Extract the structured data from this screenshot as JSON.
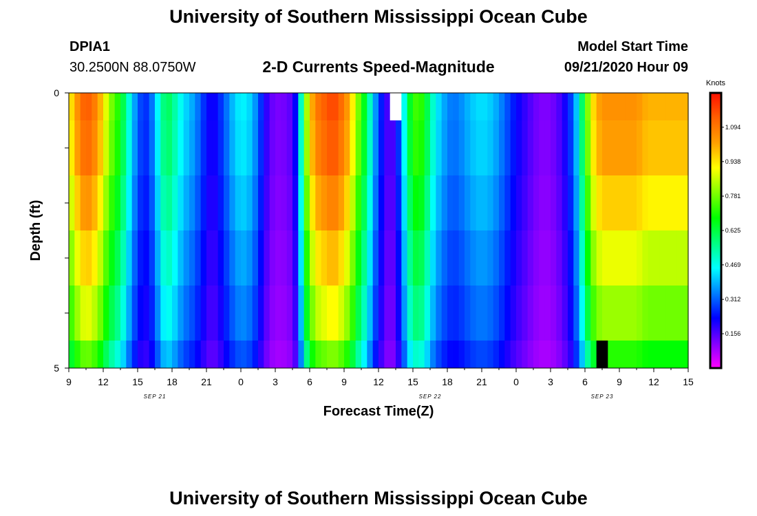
{
  "page": {
    "title_top": "University of Southern Mississippi Ocean Cube",
    "title_bottom": "University of Southern Mississippi Ocean Cube",
    "station_id": "DPIA1",
    "station_coords": "30.2500N 88.0750W",
    "model_start_label": "Model Start Time",
    "model_start_value": "09/21/2020 Hour 09"
  },
  "chart_data": {
    "type": "heatmap",
    "title": "2-D Currents Speed-Magnitude",
    "xlabel": "Forecast Time(Z)",
    "ylabel": "Depth (ft)",
    "colorbar_label": "Knots",
    "x_tick_labels": [
      "9",
      "12",
      "15",
      "18",
      "21",
      "0",
      "3",
      "6",
      "9",
      "12",
      "15",
      "18",
      "21",
      "0",
      "3",
      "6",
      "9",
      "12",
      "15"
    ],
    "date_labels": [
      "SEP 21",
      "SEP 22",
      "SEP 23"
    ],
    "y_tick_labels": [
      "0",
      "5"
    ],
    "ylim": [
      0,
      5
    ],
    "x_range_hours": [
      0,
      54
    ],
    "colorbar_ticks": [
      0.156,
      0.312,
      0.469,
      0.625,
      0.781,
      0.938,
      1.094
    ],
    "color_scale": [
      "#ff00ff",
      "#8000ff",
      "#0000ff",
      "#0080ff",
      "#00ffff",
      "#00ff80",
      "#00ff00",
      "#80ff00",
      "#ffff00",
      "#ffa000",
      "#ff6000",
      "#ff1000"
    ],
    "color_range": [
      0,
      1.25
    ],
    "depth_layers": [
      "0-0.5",
      "0.5-1.5",
      "1.5-2.5",
      "2.5-3.5",
      "3.5-4.5",
      "4.5-5"
    ],
    "anchor_hours": [
      0,
      0.5,
      1,
      1.5,
      2,
      2.5,
      3,
      3.5,
      4,
      4.5,
      5,
      5.5,
      6,
      6.5,
      7,
      7.5,
      8,
      8.5,
      9,
      9.5,
      10,
      10.5,
      11,
      11.5,
      12,
      12.5,
      13,
      13.5,
      14,
      14.5,
      15,
      15.5,
      16,
      16.5,
      17,
      17.5,
      18,
      18.5,
      19,
      19.5,
      20,
      20.5,
      21,
      21.5,
      22,
      22.5,
      23,
      23.5,
      24,
      24.5,
      25,
      25.5,
      26,
      26.5,
      27,
      27.5,
      28,
      28.5,
      29,
      29.5,
      30,
      30.5,
      31,
      31.5,
      32,
      32.5,
      33,
      33.5,
      34,
      34.5,
      35,
      35.5,
      36,
      36.5,
      37,
      37.5,
      38,
      38.5,
      39,
      39.5,
      40,
      40.5,
      41,
      41.5,
      42,
      42.5,
      43,
      43.5,
      44,
      44.5,
      45,
      45.5,
      46,
      46.5,
      47,
      47.5,
      48,
      48.5,
      49,
      49.5,
      50,
      50.5,
      51,
      51.5,
      52,
      52.5,
      53,
      53.5,
      54
    ],
    "anchor_speeds": [
      0.9,
      1.0,
      1.1,
      1.15,
      1.12,
      1.05,
      0.95,
      0.82,
      0.75,
      0.68,
      0.55,
      0.42,
      0.32,
      0.26,
      0.28,
      0.38,
      0.52,
      0.62,
      0.57,
      0.5,
      0.43,
      0.4,
      0.36,
      0.3,
      0.24,
      0.2,
      0.24,
      0.3,
      0.36,
      0.42,
      0.45,
      0.44,
      0.4,
      0.32,
      0.22,
      0.15,
      0.12,
      0.12,
      0.13,
      0.16,
      0.3,
      0.72,
      0.95,
      1.08,
      1.12,
      1.15,
      1.18,
      1.15,
      1.08,
      1.0,
      0.85,
      0.72,
      0.6,
      0.42,
      0.3,
      0.2,
      0.14,
      0.2,
      0.35,
      0.58,
      0.72,
      0.75,
      0.68,
      0.55,
      0.45,
      0.4,
      0.35,
      0.33,
      0.34,
      0.37,
      0.4,
      0.42,
      0.43,
      0.42,
      0.4,
      0.36,
      0.32,
      0.27,
      0.23,
      0.2,
      0.17,
      0.14,
      0.12,
      0.11,
      0.12,
      0.14,
      0.18,
      0.24,
      0.32,
      0.48,
      0.7,
      0.9,
      1.0,
      1.05,
      1.05,
      1.05,
      1.05,
      1.05,
      1.05,
      1.05,
      1.02,
      1.0,
      1.0,
      1.0,
      1.0,
      1.0,
      1.0,
      1.0,
      1.0
    ],
    "layer_factors": [
      1.0,
      0.98,
      0.92,
      0.85,
      0.78,
      0.68
    ],
    "missing_cells": [
      {
        "hour": 28.5,
        "layer": 0,
        "color": "#ffffff"
      },
      {
        "hour": 46.5,
        "layer": 5,
        "color": "#000000"
      }
    ]
  }
}
